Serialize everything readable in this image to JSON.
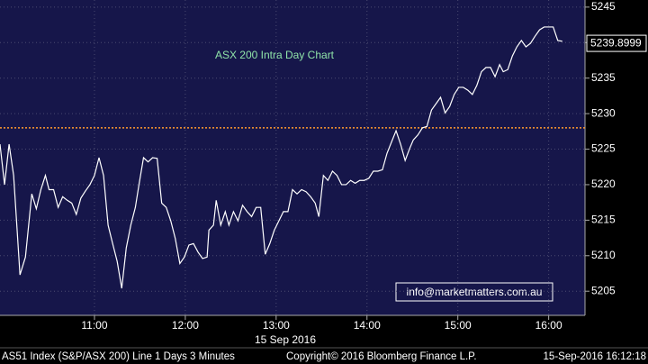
{
  "chart_data": {
    "type": "line",
    "annotation": "ASX 200 Intra Day Chart",
    "x_axis_label": "15 Sep 2016",
    "email": "info@marketmatters.com.au",
    "footer": {
      "left": "AS51 Index (S&P/ASX 200) Line 1 Days 3 Minutes",
      "center": "Copyright© 2016 Bloomberg Finance L.P.",
      "right": "15-Sep-2016 16:12:18"
    },
    "last_value": 5239.8999,
    "reference_line": {
      "value": 5228,
      "color": "#ff9a2e"
    },
    "color": "#ffffff",
    "x": [
      9.96,
      10.01,
      10.06,
      10.11,
      10.18,
      10.24,
      10.31,
      10.36,
      10.41,
      10.46,
      10.5,
      10.55,
      10.6,
      10.65,
      10.7,
      10.75,
      10.8,
      10.85,
      10.9,
      10.95,
      11.0,
      11.05,
      11.1,
      11.15,
      11.2,
      11.25,
      11.3,
      11.35,
      11.4,
      11.45,
      11.49,
      11.54,
      11.59,
      11.64,
      11.69,
      11.74,
      11.79,
      11.84,
      11.89,
      11.94,
      11.99,
      12.04,
      12.09,
      12.14,
      12.19,
      12.24,
      12.26,
      12.31,
      12.34,
      12.39,
      12.44,
      12.48,
      12.53,
      12.58,
      12.63,
      12.68,
      12.73,
      12.78,
      12.83,
      12.88,
      12.93,
      12.98,
      13.03,
      13.08,
      13.13,
      13.18,
      13.23,
      13.28,
      13.33,
      13.38,
      13.43,
      13.47,
      13.52,
      13.57,
      13.62,
      13.67,
      13.72,
      13.77,
      13.82,
      13.87,
      13.92,
      13.97,
      14.02,
      14.07,
      14.12,
      14.17,
      14.22,
      14.27,
      14.32,
      14.37,
      14.42,
      14.47,
      14.51,
      14.56,
      14.61,
      14.66,
      14.71,
      14.76,
      14.81,
      14.86,
      14.91,
      14.96,
      15.01,
      15.06,
      15.11,
      15.16,
      15.21,
      15.26,
      15.31,
      15.36,
      15.41,
      15.46,
      15.5,
      15.55,
      15.6,
      15.65,
      15.7,
      15.75,
      15.8,
      15.85,
      15.9,
      15.95,
      16.0,
      16.05,
      16.1,
      16.15
    ],
    "values": [
      5225.7,
      5220.0,
      5225.7,
      5221.3,
      5207.3,
      5209.8,
      5218.7,
      5216.6,
      5219.3,
      5221.3,
      5219.3,
      5219.3,
      5216.8,
      5218.3,
      5217.8,
      5217.4,
      5215.8,
      5218.1,
      5219.1,
      5220.0,
      5221.3,
      5223.8,
      5221.3,
      5214.3,
      5211.7,
      5209.2,
      5205.4,
      5211.1,
      5214.3,
      5216.8,
      5220.0,
      5223.8,
      5223.2,
      5223.8,
      5223.7,
      5217.4,
      5216.8,
      5214.9,
      5212.4,
      5208.9,
      5209.8,
      5211.5,
      5211.7,
      5210.5,
      5209.6,
      5209.8,
      5213.6,
      5214.3,
      5217.8,
      5214.3,
      5216.2,
      5214.3,
      5216.2,
      5214.9,
      5217.1,
      5216.2,
      5215.5,
      5216.8,
      5216.8,
      5210.2,
      5211.7,
      5213.6,
      5214.9,
      5216.2,
      5216.2,
      5219.3,
      5218.7,
      5219.3,
      5219.0,
      5218.3,
      5217.4,
      5215.5,
      5221.3,
      5220.6,
      5221.9,
      5221.3,
      5220.0,
      5220.0,
      5220.6,
      5220.2,
      5220.6,
      5220.6,
      5220.9,
      5221.9,
      5221.9,
      5222.1,
      5224.4,
      5226.0,
      5227.6,
      5225.7,
      5223.4,
      5225.1,
      5226.3,
      5227.0,
      5228.0,
      5228.2,
      5230.5,
      5231.4,
      5232.3,
      5230.1,
      5231.0,
      5232.7,
      5233.7,
      5233.7,
      5233.3,
      5232.7,
      5234.0,
      5235.9,
      5236.5,
      5236.5,
      5235.2,
      5236.9,
      5235.9,
      5236.2,
      5238.1,
      5239.4,
      5240.3,
      5239.4,
      5239.9,
      5240.9,
      5241.8,
      5242.2,
      5242.2,
      5242.2,
      5240.3,
      5240.2
    ],
    "xlim": [
      9.96,
      16.4
    ],
    "xticks": [
      {
        "value": 11,
        "label": "11:00"
      },
      {
        "value": 12,
        "label": "12:00"
      },
      {
        "value": 13,
        "label": "13:00"
      },
      {
        "value": 14,
        "label": "14:00"
      },
      {
        "value": 15,
        "label": "15:00"
      },
      {
        "value": 16,
        "label": "16:00"
      }
    ],
    "ylim": [
      5201.6,
      5246
    ],
    "yticks": [
      5205,
      5210,
      5215,
      5220,
      5225,
      5230,
      5235,
      5240,
      5245
    ],
    "grid": true
  }
}
